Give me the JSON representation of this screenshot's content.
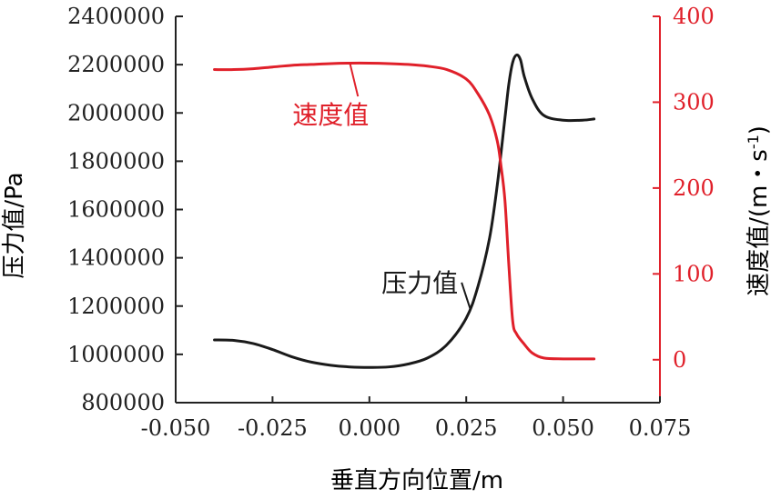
{
  "colors": {
    "pressure": "#1a1a1a",
    "velocity": "#e0202a",
    "axis": "#222222"
  },
  "chart_data": {
    "type": "line",
    "title": "",
    "xlabel": "垂直方向位置/m",
    "ylabel_left": "压力值/Pa",
    "ylabel_right_main": "速度值/(m・s",
    "ylabel_right_sup": "-1",
    "ylabel_right_close": ")",
    "xlim": [
      -0.05,
      0.075
    ],
    "ylim_left": [
      800000,
      2400000
    ],
    "ylim_right": [
      -50,
      400
    ],
    "x_ticks": [
      -0.05,
      -0.025,
      0.0,
      0.025,
      0.05,
      0.075
    ],
    "x_tick_labels": [
      "-0.050",
      "-0.025",
      "0.000",
      "0.025",
      "0.050",
      "0.075"
    ],
    "y_left_ticks": [
      800000,
      1000000,
      1200000,
      1400000,
      1600000,
      1800000,
      2000000,
      2200000,
      2400000
    ],
    "y_left_tick_labels": [
      "800000",
      "1000000",
      "1200000",
      "1400000",
      "1600000",
      "1800000",
      "2000000",
      "2200000",
      "2400000"
    ],
    "y_right_ticks": [
      0,
      100,
      200,
      300,
      400
    ],
    "y_right_tick_labels": [
      "0",
      "100",
      "200",
      "300",
      "400"
    ],
    "grid": false,
    "series": [
      {
        "name": "压力值",
        "axis": "left",
        "x": [
          -0.04,
          -0.035,
          -0.03,
          -0.025,
          -0.02,
          -0.015,
          -0.01,
          -0.005,
          0.0,
          0.005,
          0.01,
          0.015,
          0.02,
          0.025,
          0.028,
          0.031,
          0.033,
          0.035,
          0.036,
          0.037,
          0.038,
          0.039,
          0.04,
          0.042,
          0.045,
          0.05,
          0.055,
          0.058
        ],
        "y": [
          1060000,
          1058000,
          1045000,
          1020000,
          990000,
          968000,
          955000,
          948000,
          946000,
          948000,
          960000,
          985000,
          1040000,
          1150000,
          1280000,
          1480000,
          1700000,
          1980000,
          2120000,
          2210000,
          2240000,
          2220000,
          2150000,
          2060000,
          1990000,
          1970000,
          1970000,
          1975000
        ]
      },
      {
        "name": "速度值",
        "axis": "right",
        "x": [
          -0.04,
          -0.035,
          -0.03,
          -0.025,
          -0.02,
          -0.015,
          -0.01,
          -0.005,
          0.0,
          0.005,
          0.01,
          0.015,
          0.02,
          0.025,
          0.028,
          0.031,
          0.033,
          0.034,
          0.035,
          0.036,
          0.037,
          0.038,
          0.04,
          0.042,
          0.045,
          0.05,
          0.055,
          0.058
        ],
        "y": [
          338,
          338,
          339,
          341,
          343,
          344,
          345,
          345.5,
          345.5,
          345,
          344,
          342,
          338,
          327,
          310,
          285,
          255,
          225,
          185,
          110,
          45,
          30,
          18,
          8,
          2,
          1,
          1,
          1
        ]
      }
    ],
    "annotations": [
      {
        "text": "速度值",
        "series": "速度值",
        "text_x": -0.01,
        "text_y": 275,
        "point_x": -0.005,
        "point_y": 345
      },
      {
        "text": "压力值",
        "series": "压力值",
        "text_x": 0.013,
        "text_y": 1260000,
        "point_x": 0.026,
        "point_y": 1190000
      }
    ]
  }
}
